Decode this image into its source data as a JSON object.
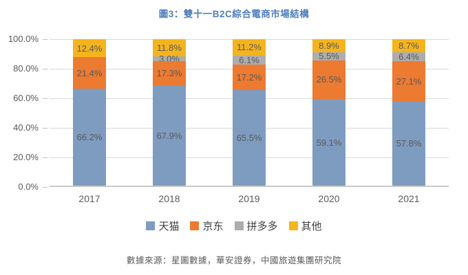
{
  "title": "圖3：雙十一B2C綜合電商市場結構",
  "title_color": "#4e7ebe",
  "source": "數據來源：星圖數據，華安證券，中國旅遊集團研究院",
  "chart_data": {
    "type": "bar",
    "stacked": true,
    "title": "圖3：雙十一B2C綜合電商市場結構",
    "categories": [
      "2017",
      "2018",
      "2019",
      "2020",
      "2021"
    ],
    "series": [
      {
        "name": "天猫",
        "color": "#7e9cc0",
        "values": [
          66.2,
          67.9,
          65.5,
          59.1,
          57.8
        ]
      },
      {
        "name": "京东",
        "color": "#ec7a31",
        "values": [
          21.4,
          17.3,
          17.2,
          26.5,
          27.1
        ]
      },
      {
        "name": "拼多多",
        "color": "#adadad",
        "values": [
          0.0,
          3.0,
          6.1,
          5.5,
          6.4
        ]
      },
      {
        "name": "其他",
        "color": "#f4b41d",
        "values": [
          12.4,
          11.8,
          11.2,
          8.9,
          8.7
        ]
      }
    ],
    "data_labels": [
      [
        "66.2%",
        "67.9%",
        "65.5%",
        "59.1%",
        "57.8%"
      ],
      [
        "21.4%",
        "17.3%",
        "17.2%",
        "26.5%",
        "27.1%"
      ],
      [
        "",
        "3.0%",
        "6.1%",
        "5.5%",
        "6.4%"
      ],
      [
        "12.4%",
        "11.8%",
        "11.2%",
        "8.9%",
        "8.7%"
      ]
    ],
    "ylim": [
      0,
      100
    ],
    "yticks": [
      {
        "value": 0,
        "label": "0.0%"
      },
      {
        "value": 20,
        "label": "20.0%"
      },
      {
        "value": 40,
        "label": "40.0%"
      },
      {
        "value": 60,
        "label": "60.0%"
      },
      {
        "value": 80,
        "label": "80.0%"
      },
      {
        "value": 100,
        "label": "100.0%"
      }
    ],
    "grid": true,
    "legend_position": "bottom"
  }
}
